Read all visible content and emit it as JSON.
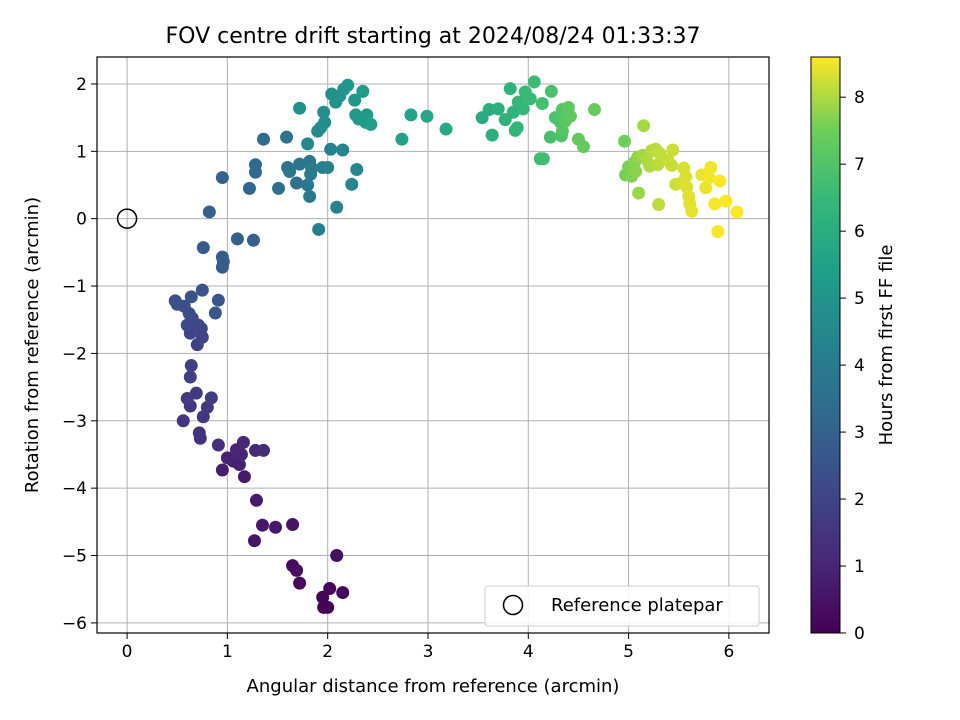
{
  "chart_data": {
    "type": "scatter",
    "title": "FOV centre drift starting at 2024/08/24 01:33:37",
    "xlabel": "Angular distance from reference (arcmin)",
    "ylabel": "Rotation from reference (arcmin)",
    "xlim": [
      -0.3,
      6.4
    ],
    "ylim": [
      -6.15,
      2.4
    ],
    "x_ticks": [
      0,
      1,
      2,
      3,
      4,
      5,
      6
    ],
    "y_ticks": [
      -6,
      -5,
      -4,
      -3,
      -2,
      -1,
      0,
      1,
      2
    ],
    "x_tick_labels": [
      "0",
      "1",
      "2",
      "3",
      "4",
      "5",
      "6"
    ],
    "y_tick_labels": [
      "−6",
      "−5",
      "−4",
      "−3",
      "−2",
      "−1",
      "0",
      "1",
      "2"
    ],
    "grid": true,
    "colormap": "viridis",
    "colorbar": {
      "label": "Hours from first FF file",
      "range": [
        0,
        8.6
      ],
      "ticks": [
        0,
        1,
        2,
        3,
        4,
        5,
        6,
        7,
        8
      ],
      "tick_labels": [
        "0",
        "1",
        "2",
        "3",
        "4",
        "5",
        "6",
        "7",
        "8"
      ]
    },
    "reference": {
      "x": 0,
      "y": 0,
      "legend_label": "Reference platepar"
    },
    "legend_position": "lower-right",
    "points": [
      {
        "x": 1.96,
        "y": -5.77,
        "t": 0.0
      },
      {
        "x": 2.0,
        "y": -5.77,
        "t": 0.05
      },
      {
        "x": 1.95,
        "y": -5.62,
        "t": 0.1
      },
      {
        "x": 2.15,
        "y": -5.55,
        "t": 0.15
      },
      {
        "x": 2.02,
        "y": -5.49,
        "t": 0.2
      },
      {
        "x": 1.72,
        "y": -5.41,
        "t": 0.25
      },
      {
        "x": 1.65,
        "y": -5.15,
        "t": 0.3
      },
      {
        "x": 1.69,
        "y": -5.22,
        "t": 0.35
      },
      {
        "x": 2.09,
        "y": -5.0,
        "t": 0.4
      },
      {
        "x": 1.65,
        "y": -4.54,
        "t": 0.5
      },
      {
        "x": 1.27,
        "y": -4.78,
        "t": 0.55
      },
      {
        "x": 1.35,
        "y": -4.55,
        "t": 0.6
      },
      {
        "x": 1.48,
        "y": -4.58,
        "t": 0.65
      },
      {
        "x": 1.29,
        "y": -4.18,
        "t": 0.7
      },
      {
        "x": 1.17,
        "y": -3.83,
        "t": 0.75
      },
      {
        "x": 0.95,
        "y": -3.73,
        "t": 0.8
      },
      {
        "x": 1.06,
        "y": -3.6,
        "t": 0.85
      },
      {
        "x": 1.12,
        "y": -3.65,
        "t": 0.9
      },
      {
        "x": 1.0,
        "y": -3.55,
        "t": 0.95
      },
      {
        "x": 1.14,
        "y": -3.5,
        "t": 1.0
      },
      {
        "x": 1.09,
        "y": -3.43,
        "t": 1.05
      },
      {
        "x": 1.16,
        "y": -3.32,
        "t": 1.1
      },
      {
        "x": 1.28,
        "y": -3.44,
        "t": 1.15
      },
      {
        "x": 1.36,
        "y": -3.44,
        "t": 1.2
      },
      {
        "x": 0.91,
        "y": -3.36,
        "t": 1.3
      },
      {
        "x": 0.73,
        "y": -3.26,
        "t": 1.35
      },
      {
        "x": 0.72,
        "y": -3.18,
        "t": 1.4
      },
      {
        "x": 0.56,
        "y": -3.0,
        "t": 1.45
      },
      {
        "x": 0.76,
        "y": -2.94,
        "t": 1.5
      },
      {
        "x": 0.8,
        "y": -2.8,
        "t": 1.55
      },
      {
        "x": 0.63,
        "y": -2.78,
        "t": 1.6
      },
      {
        "x": 0.6,
        "y": -2.67,
        "t": 1.65
      },
      {
        "x": 0.69,
        "y": -2.59,
        "t": 1.7
      },
      {
        "x": 0.84,
        "y": -2.66,
        "t": 1.75
      },
      {
        "x": 0.63,
        "y": -2.35,
        "t": 1.8
      },
      {
        "x": 0.64,
        "y": -2.18,
        "t": 1.85
      },
      {
        "x": 0.7,
        "y": -1.87,
        "t": 1.9
      },
      {
        "x": 0.63,
        "y": -1.7,
        "t": 1.95
      },
      {
        "x": 0.75,
        "y": -1.76,
        "t": 2.0
      },
      {
        "x": 0.74,
        "y": -1.63,
        "t": 2.05
      },
      {
        "x": 0.71,
        "y": -1.58,
        "t": 2.1
      },
      {
        "x": 0.6,
        "y": -1.58,
        "t": 2.15
      },
      {
        "x": 0.65,
        "y": -1.48,
        "t": 2.2
      },
      {
        "x": 0.62,
        "y": -1.41,
        "t": 2.25
      },
      {
        "x": 0.57,
        "y": -1.3,
        "t": 2.3
      },
      {
        "x": 0.48,
        "y": -1.22,
        "t": 2.35
      },
      {
        "x": 0.5,
        "y": -1.27,
        "t": 2.4
      },
      {
        "x": 0.64,
        "y": -1.16,
        "t": 2.45
      },
      {
        "x": 0.75,
        "y": -1.06,
        "t": 2.5
      },
      {
        "x": 0.88,
        "y": -1.4,
        "t": 2.55
      },
      {
        "x": 0.91,
        "y": -1.21,
        "t": 2.6
      },
      {
        "x": 0.76,
        "y": -0.43,
        "t": 2.7
      },
      {
        "x": 0.95,
        "y": -0.72,
        "t": 2.75
      },
      {
        "x": 0.96,
        "y": -0.64,
        "t": 2.8
      },
      {
        "x": 0.95,
        "y": -0.57,
        "t": 2.85
      },
      {
        "x": 1.1,
        "y": -0.3,
        "t": 2.9
      },
      {
        "x": 1.26,
        "y": -0.32,
        "t": 2.95
      },
      {
        "x": 0.82,
        "y": 0.1,
        "t": 3.0
      },
      {
        "x": 0.95,
        "y": 0.61,
        "t": 3.1
      },
      {
        "x": 1.22,
        "y": 0.45,
        "t": 3.2
      },
      {
        "x": 1.28,
        "y": 0.8,
        "t": 3.25
      },
      {
        "x": 1.28,
        "y": 0.69,
        "t": 3.3
      },
      {
        "x": 1.36,
        "y": 1.18,
        "t": 3.4
      },
      {
        "x": 1.51,
        "y": 0.45,
        "t": 3.5
      },
      {
        "x": 1.69,
        "y": 0.53,
        "t": 3.6
      },
      {
        "x": 1.59,
        "y": 1.21,
        "t": 3.65
      },
      {
        "x": 1.6,
        "y": 0.76,
        "t": 3.7
      },
      {
        "x": 1.62,
        "y": 0.7,
        "t": 3.75
      },
      {
        "x": 1.72,
        "y": 0.81,
        "t": 3.8
      },
      {
        "x": 1.82,
        "y": 0.85,
        "t": 3.85
      },
      {
        "x": 1.8,
        "y": 0.5,
        "t": 3.9
      },
      {
        "x": 1.82,
        "y": 0.33,
        "t": 3.95
      },
      {
        "x": 1.83,
        "y": 0.66,
        "t": 4.0
      },
      {
        "x": 1.84,
        "y": 0.75,
        "t": 4.05
      },
      {
        "x": 1.91,
        "y": -0.16,
        "t": 4.1
      },
      {
        "x": 1.95,
        "y": 0.76,
        "t": 4.15
      },
      {
        "x": 2.0,
        "y": 0.76,
        "t": 4.2
      },
      {
        "x": 2.09,
        "y": 0.17,
        "t": 4.3
      },
      {
        "x": 2.03,
        "y": 1.03,
        "t": 4.35
      },
      {
        "x": 2.15,
        "y": 1.02,
        "t": 4.4
      },
      {
        "x": 2.24,
        "y": 0.51,
        "t": 4.45
      },
      {
        "x": 2.29,
        "y": 0.73,
        "t": 4.5
      },
      {
        "x": 1.8,
        "y": 1.11,
        "t": 4.55
      },
      {
        "x": 1.9,
        "y": 1.3,
        "t": 4.6
      },
      {
        "x": 1.93,
        "y": 1.35,
        "t": 4.65
      },
      {
        "x": 1.97,
        "y": 1.43,
        "t": 4.7
      },
      {
        "x": 1.96,
        "y": 1.58,
        "t": 4.75
      },
      {
        "x": 1.72,
        "y": 1.64,
        "t": 4.8
      },
      {
        "x": 2.04,
        "y": 1.85,
        "t": 4.85
      },
      {
        "x": 2.08,
        "y": 1.73,
        "t": 4.9
      },
      {
        "x": 2.12,
        "y": 1.82,
        "t": 4.95
      },
      {
        "x": 2.16,
        "y": 1.92,
        "t": 5.0
      },
      {
        "x": 2.2,
        "y": 1.98,
        "t": 5.05
      },
      {
        "x": 2.27,
        "y": 1.76,
        "t": 5.1
      },
      {
        "x": 2.28,
        "y": 1.54,
        "t": 5.15
      },
      {
        "x": 2.31,
        "y": 1.48,
        "t": 5.2
      },
      {
        "x": 2.35,
        "y": 1.89,
        "t": 5.25
      },
      {
        "x": 2.39,
        "y": 1.54,
        "t": 5.3
      },
      {
        "x": 2.38,
        "y": 1.43,
        "t": 5.35
      },
      {
        "x": 2.43,
        "y": 1.4,
        "t": 5.4
      },
      {
        "x": 2.74,
        "y": 1.18,
        "t": 5.5
      },
      {
        "x": 2.83,
        "y": 1.54,
        "t": 5.6
      },
      {
        "x": 2.99,
        "y": 1.52,
        "t": 5.7
      },
      {
        "x": 3.18,
        "y": 1.33,
        "t": 5.8
      },
      {
        "x": 3.54,
        "y": 1.5,
        "t": 5.9
      },
      {
        "x": 3.61,
        "y": 1.62,
        "t": 6.0
      },
      {
        "x": 3.64,
        "y": 1.24,
        "t": 6.05
      },
      {
        "x": 3.7,
        "y": 1.63,
        "t": 6.1
      },
      {
        "x": 3.77,
        "y": 1.47,
        "t": 6.15
      },
      {
        "x": 3.82,
        "y": 1.93,
        "t": 6.2
      },
      {
        "x": 3.85,
        "y": 1.58,
        "t": 6.25
      },
      {
        "x": 3.87,
        "y": 1.31,
        "t": 6.3
      },
      {
        "x": 3.89,
        "y": 1.35,
        "t": 6.35
      },
      {
        "x": 3.9,
        "y": 1.73,
        "t": 6.4
      },
      {
        "x": 3.95,
        "y": 1.63,
        "t": 6.45
      },
      {
        "x": 3.97,
        "y": 1.88,
        "t": 6.5
      },
      {
        "x": 4.02,
        "y": 1.78,
        "t": 6.55
      },
      {
        "x": 4.06,
        "y": 2.03,
        "t": 6.6
      },
      {
        "x": 4.12,
        "y": 0.89,
        "t": 6.65
      },
      {
        "x": 4.15,
        "y": 0.89,
        "t": 6.7
      },
      {
        "x": 4.14,
        "y": 1.71,
        "t": 6.75
      },
      {
        "x": 4.22,
        "y": 1.21,
        "t": 6.8
      },
      {
        "x": 4.23,
        "y": 1.89,
        "t": 6.85
      },
      {
        "x": 4.27,
        "y": 1.5,
        "t": 6.9
      },
      {
        "x": 4.32,
        "y": 1.43,
        "t": 6.95
      },
      {
        "x": 4.33,
        "y": 1.23,
        "t": 7.0
      },
      {
        "x": 4.34,
        "y": 1.3,
        "t": 7.05
      },
      {
        "x": 4.34,
        "y": 1.62,
        "t": 7.1
      },
      {
        "x": 4.37,
        "y": 1.45,
        "t": 7.15
      },
      {
        "x": 4.4,
        "y": 1.65,
        "t": 7.2
      },
      {
        "x": 4.42,
        "y": 1.52,
        "t": 7.25
      },
      {
        "x": 4.5,
        "y": 1.18,
        "t": 7.3
      },
      {
        "x": 4.55,
        "y": 1.07,
        "t": 7.35
      },
      {
        "x": 4.66,
        "y": 1.62,
        "t": 7.4
      },
      {
        "x": 4.96,
        "y": 1.15,
        "t": 7.5
      },
      {
        "x": 4.97,
        "y": 0.65,
        "t": 7.55
      },
      {
        "x": 5.0,
        "y": 0.77,
        "t": 7.6
      },
      {
        "x": 5.03,
        "y": 0.63,
        "t": 7.65
      },
      {
        "x": 5.06,
        "y": 0.84,
        "t": 7.7
      },
      {
        "x": 5.07,
        "y": 0.7,
        "t": 7.75
      },
      {
        "x": 5.09,
        "y": 0.91,
        "t": 7.8
      },
      {
        "x": 5.1,
        "y": 0.38,
        "t": 7.85
      },
      {
        "x": 5.14,
        "y": 0.94,
        "t": 7.9
      },
      {
        "x": 5.15,
        "y": 1.38,
        "t": 7.95
      },
      {
        "x": 5.18,
        "y": 0.88,
        "t": 8.0
      },
      {
        "x": 5.21,
        "y": 0.78,
        "t": 8.02
      },
      {
        "x": 5.23,
        "y": 1.01,
        "t": 8.05
      },
      {
        "x": 5.27,
        "y": 1.03,
        "t": 8.08
      },
      {
        "x": 5.29,
        "y": 0.8,
        "t": 8.1
      },
      {
        "x": 5.3,
        "y": 0.21,
        "t": 8.12
      },
      {
        "x": 5.31,
        "y": 0.97,
        "t": 8.15
      },
      {
        "x": 5.39,
        "y": 0.87,
        "t": 8.18
      },
      {
        "x": 5.43,
        "y": 0.79,
        "t": 8.2
      },
      {
        "x": 5.44,
        "y": 1.02,
        "t": 8.22
      },
      {
        "x": 5.47,
        "y": 0.51,
        "t": 8.25
      },
      {
        "x": 5.55,
        "y": 0.56,
        "t": 8.28
      },
      {
        "x": 5.55,
        "y": 0.75,
        "t": 8.3
      },
      {
        "x": 5.57,
        "y": 0.62,
        "t": 8.32
      },
      {
        "x": 5.58,
        "y": 0.47,
        "t": 8.35
      },
      {
        "x": 5.6,
        "y": 0.33,
        "t": 8.38
      },
      {
        "x": 5.61,
        "y": 0.22,
        "t": 8.4
      },
      {
        "x": 5.63,
        "y": 0.11,
        "t": 8.42
      },
      {
        "x": 5.73,
        "y": 0.65,
        "t": 8.45
      },
      {
        "x": 5.77,
        "y": 0.46,
        "t": 8.47
      },
      {
        "x": 5.8,
        "y": 0.61,
        "t": 8.5
      },
      {
        "x": 5.82,
        "y": 0.76,
        "t": 8.52
      },
      {
        "x": 5.86,
        "y": 0.22,
        "t": 8.55
      },
      {
        "x": 5.89,
        "y": -0.19,
        "t": 8.57
      },
      {
        "x": 5.91,
        "y": 0.56,
        "t": 8.58
      },
      {
        "x": 5.97,
        "y": 0.26,
        "t": 8.59
      },
      {
        "x": 6.08,
        "y": 0.1,
        "t": 8.6
      }
    ]
  }
}
